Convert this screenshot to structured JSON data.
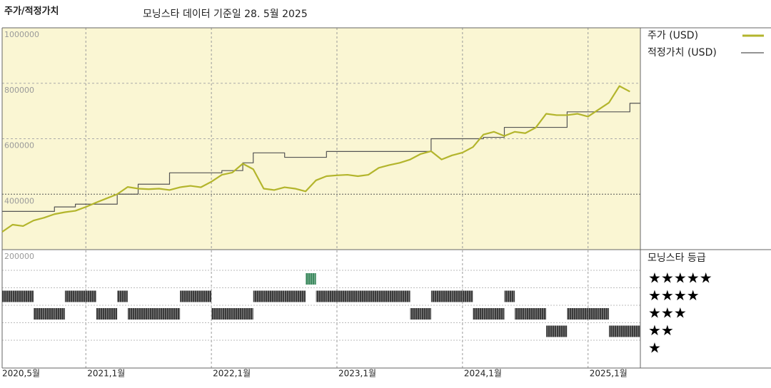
{
  "chart_data": {
    "type": "line",
    "title": "주가/적정가치",
    "subtitle": "모닝스타 데이터 기준일 28. 5월 2025",
    "x": [
      "2020-05",
      "2020-06",
      "2020-07",
      "2020-08",
      "2020-09",
      "2020-10",
      "2020-11",
      "2020-12",
      "2021-01",
      "2021-02",
      "2021-03",
      "2021-04",
      "2021-05",
      "2021-06",
      "2021-07",
      "2021-08",
      "2021-09",
      "2021-10",
      "2021-11",
      "2021-12",
      "2022-01",
      "2022-02",
      "2022-03",
      "2022-04",
      "2022-05",
      "2022-06",
      "2022-07",
      "2022-08",
      "2022-09",
      "2022-10",
      "2022-11",
      "2022-12",
      "2023-01",
      "2023-02",
      "2023-03",
      "2023-04",
      "2023-05",
      "2023-06",
      "2023-07",
      "2023-08",
      "2023-09",
      "2023-10",
      "2023-11",
      "2023-12",
      "2024-01",
      "2024-02",
      "2024-03",
      "2024-04",
      "2024-05",
      "2024-06",
      "2024-07",
      "2024-08",
      "2024-09",
      "2024-10",
      "2024-11",
      "2024-12",
      "2025-01",
      "2025-02",
      "2025-03",
      "2025-04",
      "2025-05"
    ],
    "series": [
      {
        "name": "주가 (USD)",
        "color": "#b3b52c",
        "step": false,
        "values": [
          264000,
          290000,
          285000,
          305000,
          315000,
          328000,
          335000,
          340000,
          354000,
          370000,
          385000,
          400000,
          426000,
          420000,
          418000,
          420000,
          415000,
          425000,
          430000,
          425000,
          445000,
          470000,
          478000,
          510000,
          490000,
          420000,
          415000,
          425000,
          420000,
          410000,
          450000,
          465000,
          468000,
          470000,
          465000,
          470000,
          495000,
          505000,
          513000,
          525000,
          545000,
          555000,
          525000,
          540000,
          550000,
          570000,
          615000,
          625000,
          610000,
          625000,
          620000,
          640000,
          690000,
          685000,
          685000,
          690000,
          680000,
          705000,
          730000,
          790000,
          770000
        ]
      },
      {
        "name": "적정가치 (USD)",
        "color": "#555555",
        "step": true,
        "values": [
          338000,
          338000,
          338000,
          338000,
          338000,
          354000,
          354000,
          364000,
          364000,
          364000,
          364000,
          400000,
          400000,
          436000,
          436000,
          436000,
          477000,
          477000,
          477000,
          477000,
          477000,
          485000,
          485000,
          513000,
          549000,
          549000,
          549000,
          533000,
          533000,
          533000,
          533000,
          554000,
          554000,
          554000,
          554000,
          554000,
          554000,
          554000,
          554000,
          554000,
          554000,
          600000,
          600000,
          600000,
          600000,
          600000,
          605000,
          605000,
          641000,
          641000,
          641000,
          641000,
          641000,
          641000,
          697000,
          697000,
          697000,
          697000,
          697000,
          697000,
          728000
        ]
      }
    ],
    "xlim": [
      "2020-05",
      "2025-06"
    ],
    "xticks": [
      {
        "value": "2020-05",
        "label": "2020,5월"
      },
      {
        "value": "2021-01",
        "label": "2021,1월"
      },
      {
        "value": "2022-01",
        "label": "2022,1월"
      },
      {
        "value": "2023-01",
        "label": "2023,1월"
      },
      {
        "value": "2024-01",
        "label": "2024,1월"
      },
      {
        "value": "2025-01",
        "label": "2025,1월"
      }
    ],
    "ylim": [
      200000,
      1000000
    ],
    "yticks": [
      200000,
      400000,
      600000,
      800000,
      1000000
    ],
    "grid": true,
    "background": "#faf6d3",
    "ratings": {
      "title": "모닝스타 등급",
      "labels": [
        "★★★★★",
        "★★★★",
        "★★★",
        "★★",
        "★"
      ],
      "values": [
        4,
        4,
        4,
        3,
        3,
        3,
        4,
        4,
        4,
        3,
        3,
        4,
        3,
        3,
        3,
        3,
        3,
        4,
        4,
        4,
        3,
        3,
        3,
        3,
        4,
        4,
        4,
        4,
        4,
        5,
        4,
        4,
        4,
        4,
        4,
        4,
        4,
        4,
        4,
        3,
        3,
        4,
        4,
        4,
        4,
        3,
        3,
        3,
        4,
        3,
        3,
        3,
        2,
        2,
        3,
        3,
        3,
        3,
        2,
        2,
        2
      ],
      "color": "#3a3a3a",
      "top_color": "#3d8a5f"
    }
  }
}
